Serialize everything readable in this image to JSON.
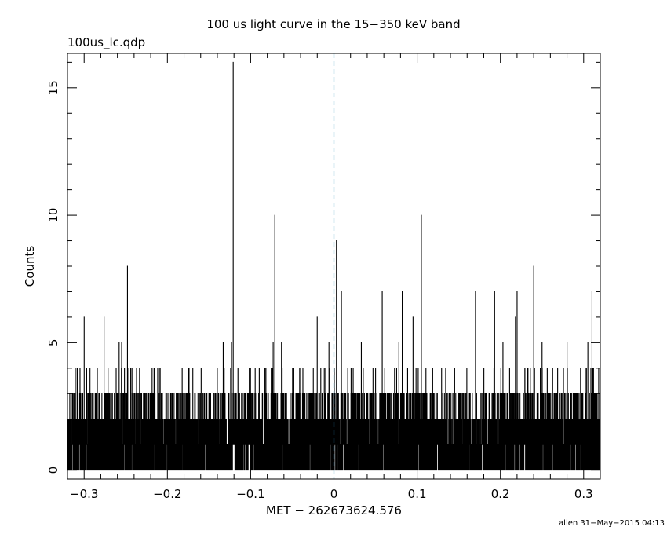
{
  "header": {
    "title": "100 us light curve in the 15−350 keV band",
    "filename": "100us_lc.qdp"
  },
  "footer": {
    "credit": "allen 31−May−2015 04:13"
  },
  "chart_data": {
    "type": "line",
    "style": "histogram-step",
    "title": "100 us light curve in the 15−350 keV band",
    "xlabel": "MET − 262673624.576",
    "ylabel": "Counts",
    "xlim": [
      -0.32,
      0.32
    ],
    "ylim": [
      -0.35,
      16.35
    ],
    "bin_width": 0.0001,
    "x_ticks": [
      -0.3,
      -0.2,
      -0.1,
      0,
      0.1,
      0.2,
      0.3
    ],
    "x_tick_labels": [
      "−0.3",
      "−0.2",
      "−0.1",
      "0",
      "0.1",
      "0.2",
      "0.3"
    ],
    "y_ticks": [
      0,
      5,
      10,
      15
    ],
    "y_tick_labels": [
      "0",
      "5",
      "10",
      "15"
    ],
    "reference_line": {
      "x": 0,
      "style": "dashed",
      "color": "#2a8fbf"
    },
    "line_color": "#000000",
    "peaks": [
      {
        "x": -0.305,
        "y": 4
      },
      {
        "x": -0.3,
        "y": 6
      },
      {
        "x": -0.297,
        "y": 4
      },
      {
        "x": -0.276,
        "y": 6
      },
      {
        "x": -0.27,
        "y": 3
      },
      {
        "x": -0.258,
        "y": 5
      },
      {
        "x": -0.255,
        "y": 5
      },
      {
        "x": -0.248,
        "y": 8
      },
      {
        "x": -0.21,
        "y": 4
      },
      {
        "x": -0.175,
        "y": 4
      },
      {
        "x": -0.14,
        "y": 4
      },
      {
        "x": -0.133,
        "y": 5
      },
      {
        "x": -0.123,
        "y": 5
      },
      {
        "x": -0.121,
        "y": 16
      },
      {
        "x": -0.073,
        "y": 5
      },
      {
        "x": -0.071,
        "y": 10
      },
      {
        "x": -0.063,
        "y": 5
      },
      {
        "x": -0.02,
        "y": 6
      },
      {
        "x": -0.006,
        "y": 5
      },
      {
        "x": 0.003,
        "y": 9
      },
      {
        "x": 0.009,
        "y": 7
      },
      {
        "x": 0.033,
        "y": 5
      },
      {
        "x": 0.058,
        "y": 7
      },
      {
        "x": 0.078,
        "y": 5
      },
      {
        "x": 0.082,
        "y": 7
      },
      {
        "x": 0.095,
        "y": 6
      },
      {
        "x": 0.105,
        "y": 10
      },
      {
        "x": 0.17,
        "y": 7
      },
      {
        "x": 0.193,
        "y": 7
      },
      {
        "x": 0.203,
        "y": 5
      },
      {
        "x": 0.218,
        "y": 6
      },
      {
        "x": 0.22,
        "y": 7
      },
      {
        "x": 0.24,
        "y": 8
      },
      {
        "x": 0.25,
        "y": 5
      },
      {
        "x": 0.28,
        "y": 5
      },
      {
        "x": 0.305,
        "y": 5
      },
      {
        "x": 0.31,
        "y": 7
      },
      {
        "x": 0.318,
        "y": 4
      }
    ]
  }
}
